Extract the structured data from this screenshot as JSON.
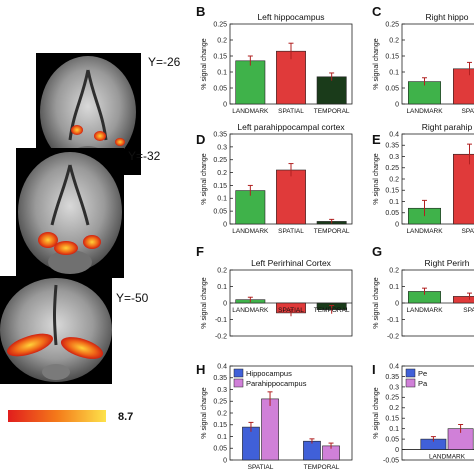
{
  "brain": {
    "slices": [
      {
        "label": "Y=-26"
      },
      {
        "label": "Y=-32"
      },
      {
        "label": "Y=-50"
      }
    ],
    "colorbar": {
      "max_label": "8.7",
      "colors": [
        "#e11d1d",
        "#f47a1a",
        "#fde24a"
      ]
    }
  },
  "colors": {
    "LANDMARK": "#3fb24a",
    "SPATIAL": "#e03a3a",
    "TEMPORAL": "#1a3b1a",
    "Hippocampus": "#4060d8",
    "Parahippocampus": "#d080d8"
  },
  "chart_data": [
    {
      "panel": "B",
      "type": "bar",
      "title": "Left hippocampus",
      "ylabel": "% signal change",
      "ylim": [
        0,
        0.25
      ],
      "yticks": [
        0,
        0.05,
        0.1,
        0.15,
        0.2,
        0.25
      ],
      "categories": [
        "LANDMARK",
        "SPATIAL",
        "TEMPORAL"
      ],
      "values": [
        0.135,
        0.165,
        0.085
      ],
      "errors": [
        0.015,
        0.025,
        0.012
      ]
    },
    {
      "panel": "C",
      "type": "bar",
      "title": "Right hippo",
      "ylabel": "% signal change",
      "ylim": [
        0,
        0.25
      ],
      "yticks": [
        0,
        0.05,
        0.1,
        0.15,
        0.2,
        0.25
      ],
      "categories": [
        "LANDMARK",
        "SPAT"
      ],
      "values": [
        0.07,
        0.11
      ],
      "errors": [
        0.012,
        0.02
      ]
    },
    {
      "panel": "D",
      "type": "bar",
      "title": "Left parahippocampal cortex",
      "ylabel": "% signal change",
      "ylim": [
        0,
        0.35
      ],
      "yticks": [
        0,
        0.05,
        0.1,
        0.15,
        0.2,
        0.25,
        0.3,
        0.35
      ],
      "categories": [
        "LANDMARK",
        "SPATIAL",
        "TEMPORAL"
      ],
      "values": [
        0.13,
        0.21,
        0.01
      ],
      "errors": [
        0.02,
        0.025,
        0.008
      ]
    },
    {
      "panel": "E",
      "type": "bar",
      "title": "Right parahip",
      "ylabel": "% signal change",
      "ylim": [
        0,
        0.4
      ],
      "yticks": [
        0,
        0.05,
        0.1,
        0.15,
        0.2,
        0.25,
        0.3,
        0.35,
        0.4
      ],
      "categories": [
        "LANDMARK",
        "SPAT"
      ],
      "values": [
        0.07,
        0.31
      ],
      "errors": [
        0.035,
        0.045
      ]
    },
    {
      "panel": "F",
      "type": "bar",
      "title": "Left Perirhinal Cortex",
      "ylabel": "% signal change",
      "ylim": [
        -0.2,
        0.2
      ],
      "yticks": [
        -0.2,
        -0.1,
        0,
        0.1,
        0.2
      ],
      "categories": [
        "LANDMARK",
        "SPATIAL",
        "TEMPORAL"
      ],
      "values": [
        0.02,
        -0.06,
        -0.04
      ],
      "errors": [
        0.015,
        0.02,
        0.025
      ]
    },
    {
      "panel": "G",
      "type": "bar",
      "title": "Right Perirh",
      "ylabel": "% signal change",
      "ylim": [
        -0.2,
        0.2
      ],
      "yticks": [
        -0.2,
        -0.1,
        0,
        0.1,
        0.2
      ],
      "categories": [
        "LANDMARK",
        "SPA"
      ],
      "values": [
        0.07,
        0.04
      ],
      "errors": [
        0.02,
        0.02
      ]
    },
    {
      "panel": "H",
      "type": "bar",
      "title": "",
      "ylabel": "% signal change",
      "ylim": [
        0,
        0.4
      ],
      "yticks": [
        0,
        0.05,
        0.1,
        0.15,
        0.2,
        0.25,
        0.3,
        0.35,
        0.4
      ],
      "categories": [
        "SPATIAL",
        "TEMPORAL"
      ],
      "series": [
        {
          "name": "Hippocampus",
          "values": [
            0.14,
            0.08
          ],
          "errors": [
            0.02,
            0.01
          ]
        },
        {
          "name": "Parahippocampus",
          "values": [
            0.26,
            0.06
          ],
          "errors": [
            0.03,
            0.012
          ]
        }
      ],
      "legend": "top-left"
    },
    {
      "panel": "I",
      "type": "bar",
      "title": "",
      "ylabel": "% signal change",
      "ylim": [
        -0.05,
        0.4
      ],
      "yticks": [
        -0.05,
        0,
        0.05,
        0.1,
        0.15,
        0.2,
        0.25,
        0.3,
        0.35,
        0.4
      ],
      "categories": [
        "LANDMARK"
      ],
      "series": [
        {
          "name": "Pe",
          "values": [
            0.05
          ],
          "errors": [
            0.012
          ]
        },
        {
          "name": "Pa",
          "values": [
            0.1
          ],
          "errors": [
            0.02
          ]
        }
      ],
      "legend": "top-left"
    }
  ]
}
